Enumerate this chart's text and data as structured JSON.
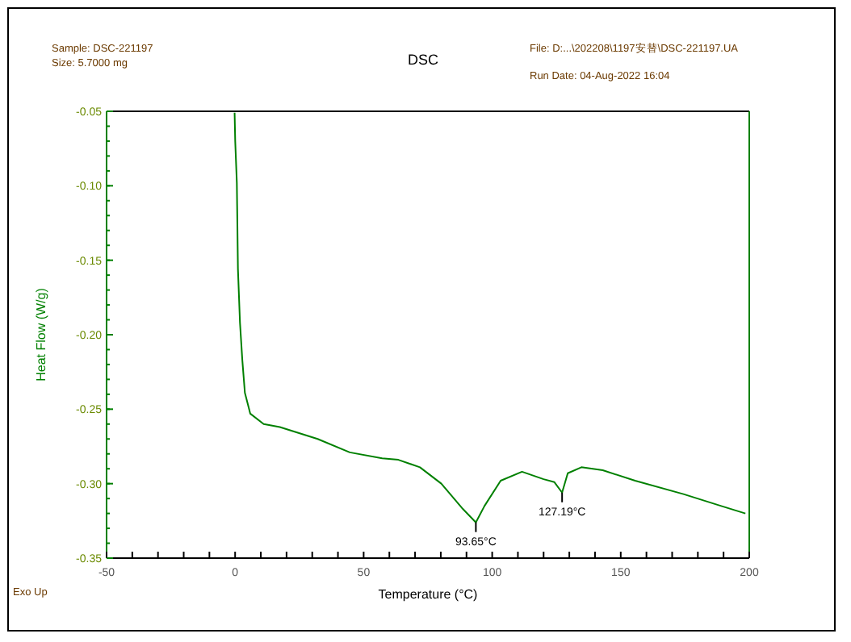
{
  "chart_data": {
    "type": "line",
    "title": "DSC",
    "xlabel": "Temperature (°C)",
    "ylabel": "Heat Flow (W/g)",
    "color": "#008000",
    "x": [
      -0.2,
      0.04,
      0.67,
      1.1,
      1.9,
      2.8,
      3.8,
      5.9,
      11.1,
      17.4,
      32.1,
      44.6,
      57.2,
      63.5,
      71.9,
      80.2,
      88.6,
      93.65,
      97.0,
      103.3,
      111.6,
      120.0,
      124.2,
      127.19,
      129.4,
      134.7,
      143.0,
      155.6,
      174.4,
      189.1,
      198.5
    ],
    "values": [
      -0.051,
      -0.07,
      -0.098,
      -0.156,
      -0.192,
      -0.217,
      -0.239,
      -0.253,
      -0.26,
      -0.262,
      -0.27,
      -0.279,
      -0.283,
      -0.284,
      -0.289,
      -0.3,
      -0.317,
      -0.326,
      -0.315,
      -0.298,
      -0.292,
      -0.297,
      -0.299,
      -0.306,
      -0.293,
      -0.289,
      -0.291,
      -0.298,
      -0.307,
      -0.315,
      -0.32
    ],
    "xlim": [
      -50,
      200
    ],
    "ylim": [
      -0.35,
      -0.05
    ],
    "xticks": [
      -50,
      {
        "value": -40,
        "label": null
      },
      {
        "value": -30,
        "label": null
      },
      {
        "value": -20,
        "label": null
      },
      {
        "value": -10,
        "label": null
      },
      0,
      {
        "value": 10,
        "label": null
      },
      {
        "value": 20,
        "label": null
      },
      {
        "value": 30,
        "label": null
      },
      {
        "value": 40,
        "label": null
      },
      50,
      {
        "value": 60,
        "label": null
      },
      {
        "value": 70,
        "label": null
      },
      {
        "value": 80,
        "label": null
      },
      {
        "value": 90,
        "label": null
      },
      100,
      {
        "value": 110,
        "label": null
      },
      {
        "value": 120,
        "label": null
      },
      {
        "value": 130,
        "label": null
      },
      {
        "value": 140,
        "label": null
      },
      150,
      {
        "value": 160,
        "label": null
      },
      {
        "value": 170,
        "label": null
      },
      {
        "value": 180,
        "label": null
      },
      {
        "value": 190,
        "label": null
      },
      200
    ],
    "yticks": [
      {
        "value": -0.35,
        "label": "-0.35"
      },
      {
        "value": -0.3,
        "label": "-0.30"
      },
      {
        "value": -0.25,
        "label": "-0.25"
      },
      {
        "value": -0.2,
        "label": "-0.20"
      },
      {
        "value": -0.15,
        "label": "-0.15"
      },
      {
        "value": -0.1,
        "label": "-0.10"
      },
      {
        "value": -0.05,
        "label": "-0.05"
      }
    ],
    "annotations": [
      "Sample: DSC-221197",
      "Size:  5.7000 mg",
      "File: D:...\\202208\\1197安替\\DSC-221197.UA",
      "Run Date: 04-Aug-2022 16:04",
      "Exo Up",
      {
        "text": "93.65°C",
        "x": 93.65,
        "y": -0.326
      },
      {
        "text": "127.19°C",
        "x": 127.19,
        "y": -0.306
      }
    ]
  }
}
